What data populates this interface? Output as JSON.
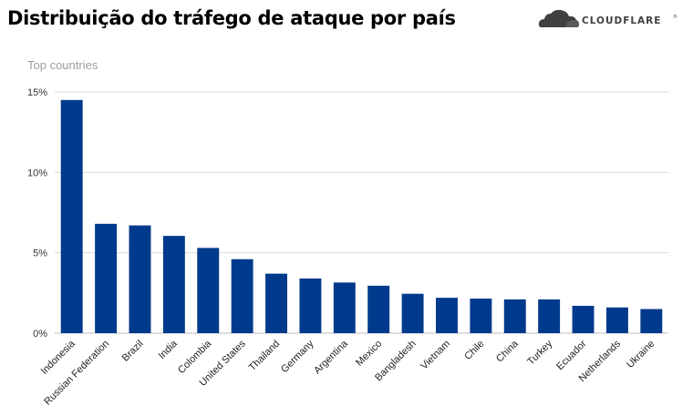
{
  "header": {
    "title": "Distribuição do tráfego de ataque por país",
    "logo_text": "CLOUDFLARE",
    "logo_tm": "®"
  },
  "colors": {
    "bar": "#003a8c",
    "grid": "#d9d9d9",
    "logo_orange": "#f38020",
    "logo_gray": "#404041"
  },
  "chart_data": {
    "type": "bar",
    "title": "Top countries",
    "xlabel": "",
    "ylabel": "",
    "ylim": [
      0,
      15
    ],
    "yticks": [
      0,
      5,
      10,
      15
    ],
    "ytick_labels": [
      "0%",
      "5%",
      "10%",
      "15%"
    ],
    "grid": true,
    "categories": [
      "Indonesia",
      "Russian Federation",
      "Brazil",
      "India",
      "Colombia",
      "United States",
      "Thailand",
      "Germany",
      "Argentina",
      "Mexico",
      "Bangladesh",
      "Vietnam",
      "Chile",
      "China",
      "Turkey",
      "Ecuador",
      "Netherlands",
      "Ukraine"
    ],
    "values": [
      14.5,
      6.8,
      6.7,
      6.05,
      5.3,
      4.6,
      3.7,
      3.4,
      3.15,
      2.95,
      2.45,
      2.2,
      2.15,
      2.1,
      2.1,
      1.7,
      1.6,
      1.5
    ]
  }
}
